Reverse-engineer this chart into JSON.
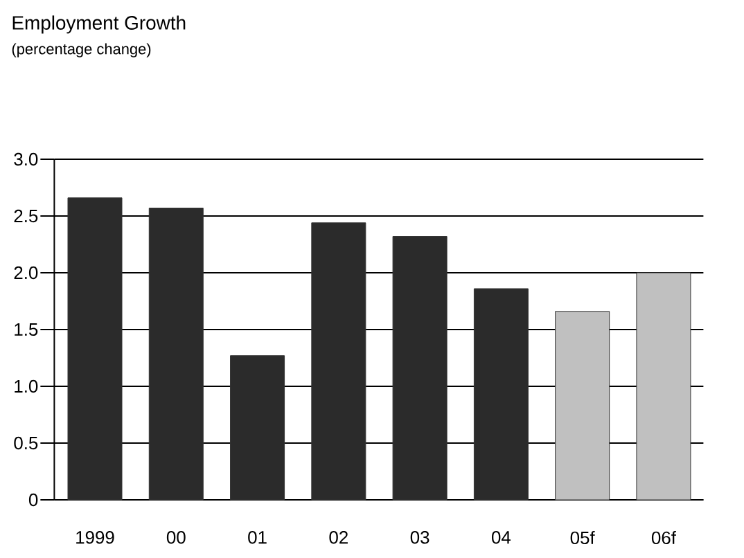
{
  "chart_data": {
    "type": "bar",
    "title": "Employment Growth",
    "subtitle": "(percentage change)",
    "categories": [
      "1999",
      "00",
      "01",
      "02",
      "03",
      "04",
      "05f",
      "06f"
    ],
    "values": [
      2.66,
      2.57,
      1.27,
      2.44,
      2.32,
      1.86,
      1.66,
      2.0
    ],
    "colors": [
      "#2b2b2b",
      "#2b2b2b",
      "#2b2b2b",
      "#2b2b2b",
      "#2b2b2b",
      "#2b2b2b",
      "#c0c0c0",
      "#c0c0c0"
    ],
    "ylim": [
      0,
      3.0
    ],
    "yticks": [
      0,
      {
        "value": 0.5,
        "label": "0.5"
      },
      {
        "value": 1.0,
        "label": "1.0"
      },
      {
        "value": 1.5,
        "label": "1.5"
      },
      {
        "value": 2.0,
        "label": "2.0"
      },
      {
        "value": 2.5,
        "label": "2.5"
      },
      {
        "value": 3.0,
        "label": "3.0"
      }
    ],
    "grid": "y"
  }
}
